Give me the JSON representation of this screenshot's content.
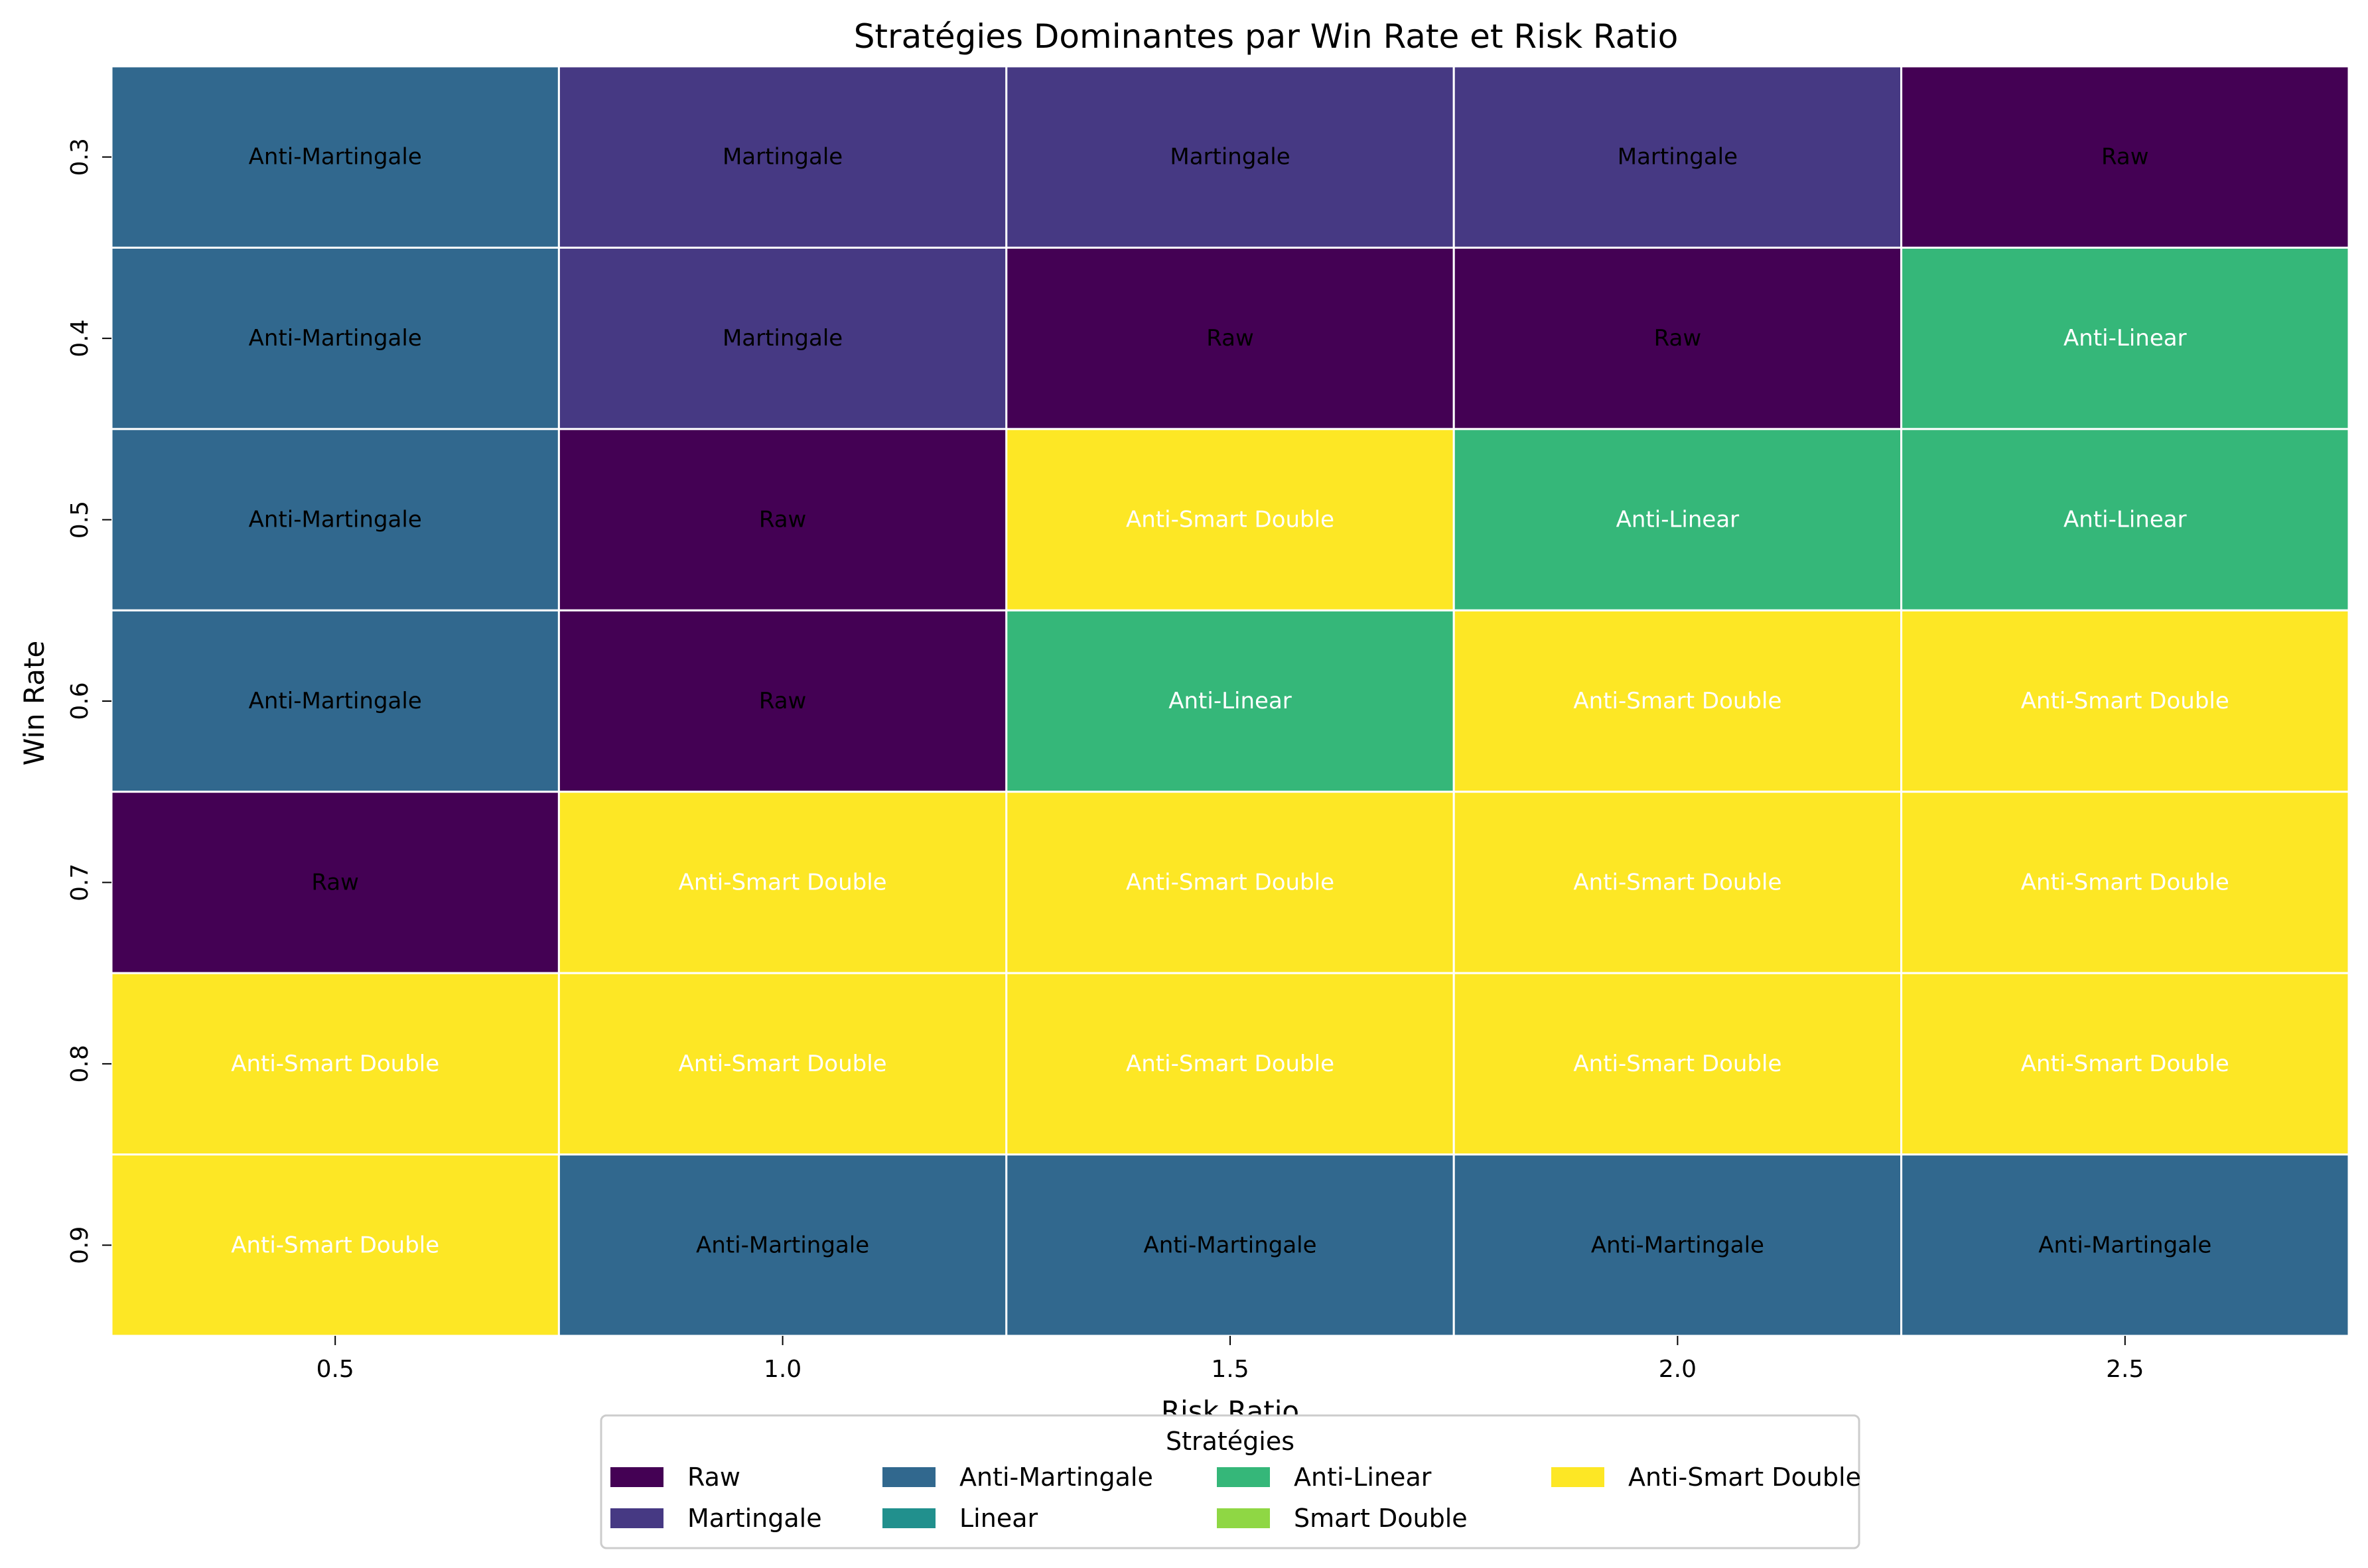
{
  "chart_data": {
    "type": "heatmap",
    "title": "Stratégies Dominantes par Win Rate et Risk Ratio",
    "xlabel": "Risk Ratio",
    "ylabel": "Win Rate",
    "x": [
      "0.5",
      "1.0",
      "1.5",
      "2.0",
      "2.5"
    ],
    "y": [
      "0.3",
      "0.4",
      "0.5",
      "0.6",
      "0.7",
      "0.8",
      "0.9"
    ],
    "cells": [
      [
        "Anti-Martingale",
        "Martingale",
        "Martingale",
        "Martingale",
        "Raw"
      ],
      [
        "Anti-Martingale",
        "Martingale",
        "Raw",
        "Raw",
        "Anti-Linear"
      ],
      [
        "Anti-Martingale",
        "Raw",
        "Anti-Smart Double",
        "Anti-Linear",
        "Anti-Linear"
      ],
      [
        "Anti-Martingale",
        "Raw",
        "Anti-Linear",
        "Anti-Smart Double",
        "Anti-Smart Double"
      ],
      [
        "Raw",
        "Anti-Smart Double",
        "Anti-Smart Double",
        "Anti-Smart Double",
        "Anti-Smart Double"
      ],
      [
        "Anti-Smart Double",
        "Anti-Smart Double",
        "Anti-Smart Double",
        "Anti-Smart Double",
        "Anti-Smart Double"
      ],
      [
        "Anti-Smart Double",
        "Anti-Martingale",
        "Anti-Martingale",
        "Anti-Martingale",
        "Anti-Martingale"
      ]
    ],
    "legend": {
      "title": "Stratégies",
      "placement": "bottom-center",
      "entries": [
        {
          "name": "Raw",
          "color": "#440154",
          "text_color": "#000000"
        },
        {
          "name": "Martingale",
          "color": "#463983",
          "text_color": "#000000"
        },
        {
          "name": "Anti-Martingale",
          "color": "#31688e",
          "text_color": "#000000"
        },
        {
          "name": "Linear",
          "color": "#21908d",
          "text_color": "#000000"
        },
        {
          "name": "Anti-Linear",
          "color": "#35b779",
          "text_color": "#ffffff"
        },
        {
          "name": "Smart Double",
          "color": "#8fd744",
          "text_color": "#ffffff"
        },
        {
          "name": "Anti-Smart Double",
          "color": "#fde725",
          "text_color": "#ffffff"
        }
      ]
    },
    "grid": false
  }
}
